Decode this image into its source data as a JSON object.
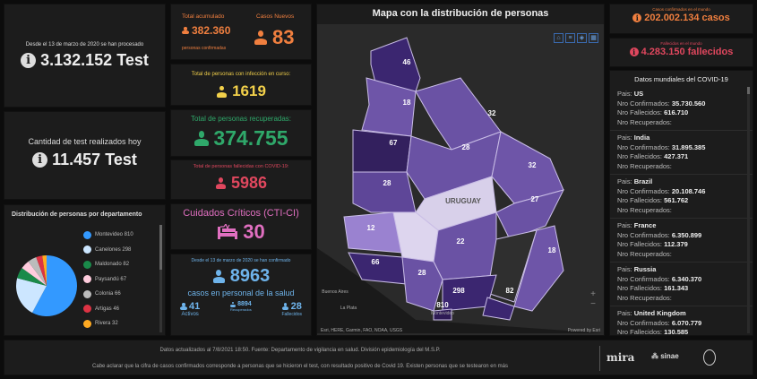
{
  "tests": {
    "since_label": "Desde el 13 de marzo de 2020 se han procesado",
    "total": "3.132.152 Test",
    "today_label": "Cantidad de test realizados hoy",
    "today": "11.457 Test"
  },
  "cases": {
    "total_label": "Total acumulado",
    "total": "382.360",
    "total_sub": "personas confirmadas",
    "new_label": "Casos Nuevos",
    "new": "83"
  },
  "active": {
    "label": "Total de personas con infección en curso:",
    "value": "1619"
  },
  "recovered": {
    "label": "Total de personas recuperadas:",
    "value": "374.755"
  },
  "deaths": {
    "label": "Total de personas fallecidas con COVID-19:",
    "value": "5986"
  },
  "cti": {
    "label": "Cuidados Críticos (CTI-CI)",
    "value": "30"
  },
  "health": {
    "since": "Desde el 13 de marzo de 2020 se han confirmado",
    "value": "8963",
    "label": "casos en personal de la salud",
    "items": [
      {
        "value": "41",
        "label": "Activos"
      },
      {
        "value": "8894",
        "label": "Recuperados"
      },
      {
        "value": "28",
        "label": "Fallecidos"
      }
    ]
  },
  "pie": {
    "title": "Distribución de personas por departamento",
    "items": [
      {
        "name": "Montevideo",
        "value": 810,
        "label": "Montevideo 810",
        "color": "#3399ff"
      },
      {
        "name": "Canelones",
        "value": 298,
        "label": "Canelones 298",
        "color": "#cce6ff"
      },
      {
        "name": "Maldonado",
        "value": 82,
        "label": "Maldonado 82",
        "color": "#1a8a4a"
      },
      {
        "name": "Paysandú",
        "value": 67,
        "label": "Paysandú 67",
        "color": "#ffccdd"
      },
      {
        "name": "Colonia",
        "value": 66,
        "label": "Colonia 66",
        "color": "#bbbbbb"
      },
      {
        "name": "Artigas",
        "value": 46,
        "label": "Artigas 46",
        "color": "#dd3344"
      },
      {
        "name": "Rivera",
        "value": 32,
        "label": "Rivera 32",
        "color": "#ffaa22"
      }
    ]
  },
  "map": {
    "title": "Mapa con la distribución de personas",
    "country": "URUGUAY",
    "attribution": "Esri, HERE, Garmin, FAO, NOAA, USGS",
    "powered": "Powered by Esri",
    "cities": [
      "Buenos Aires",
      "La Plata",
      "Montevideo"
    ],
    "regions": [
      "46",
      "18",
      "32",
      "67",
      "28",
      "32",
      "28",
      "27",
      "12",
      "22",
      "18",
      "66",
      "28",
      "298",
      "82",
      "810"
    ]
  },
  "world": {
    "cases_label": "Casos confirmados en el mundo",
    "cases": "202.002.134 casos",
    "deaths_label": "Fallecidos en el mundo",
    "deaths": "4.283.150 fallecidos",
    "list_title": "Datos mundiales del COVID-19",
    "labels": {
      "pais": "Pais: ",
      "conf": "Nro Confirmados: ",
      "fall": "Nro Fallecidos: ",
      "rec": "Nro Recuperados:"
    },
    "countries": [
      {
        "name": "US",
        "confirmed": "35.730.560",
        "deaths": "616.710"
      },
      {
        "name": "India",
        "confirmed": "31.895.385",
        "deaths": "427.371"
      },
      {
        "name": "Brazil",
        "confirmed": "20.108.746",
        "deaths": "561.762"
      },
      {
        "name": "France",
        "confirmed": "6.350.899",
        "deaths": "112.379"
      },
      {
        "name": "Russia",
        "confirmed": "6.340.370",
        "deaths": "161.343"
      },
      {
        "name": "United Kingdom",
        "confirmed": "6.070.779",
        "deaths": "130.585"
      }
    ]
  },
  "footer": {
    "updated": "Datos actualizados al 7/8/2021 18:50. Fuente: Departamento de vigilancia en salud. División epidemiología del M.S.P.",
    "note": "Cabe aclarar que la cifra de casos confirmados corresponde a personas que se hicieron el test, con resultado positivo de Covid 19. Existen personas que se testearon en más",
    "logos": [
      "mira",
      "sinae"
    ]
  }
}
